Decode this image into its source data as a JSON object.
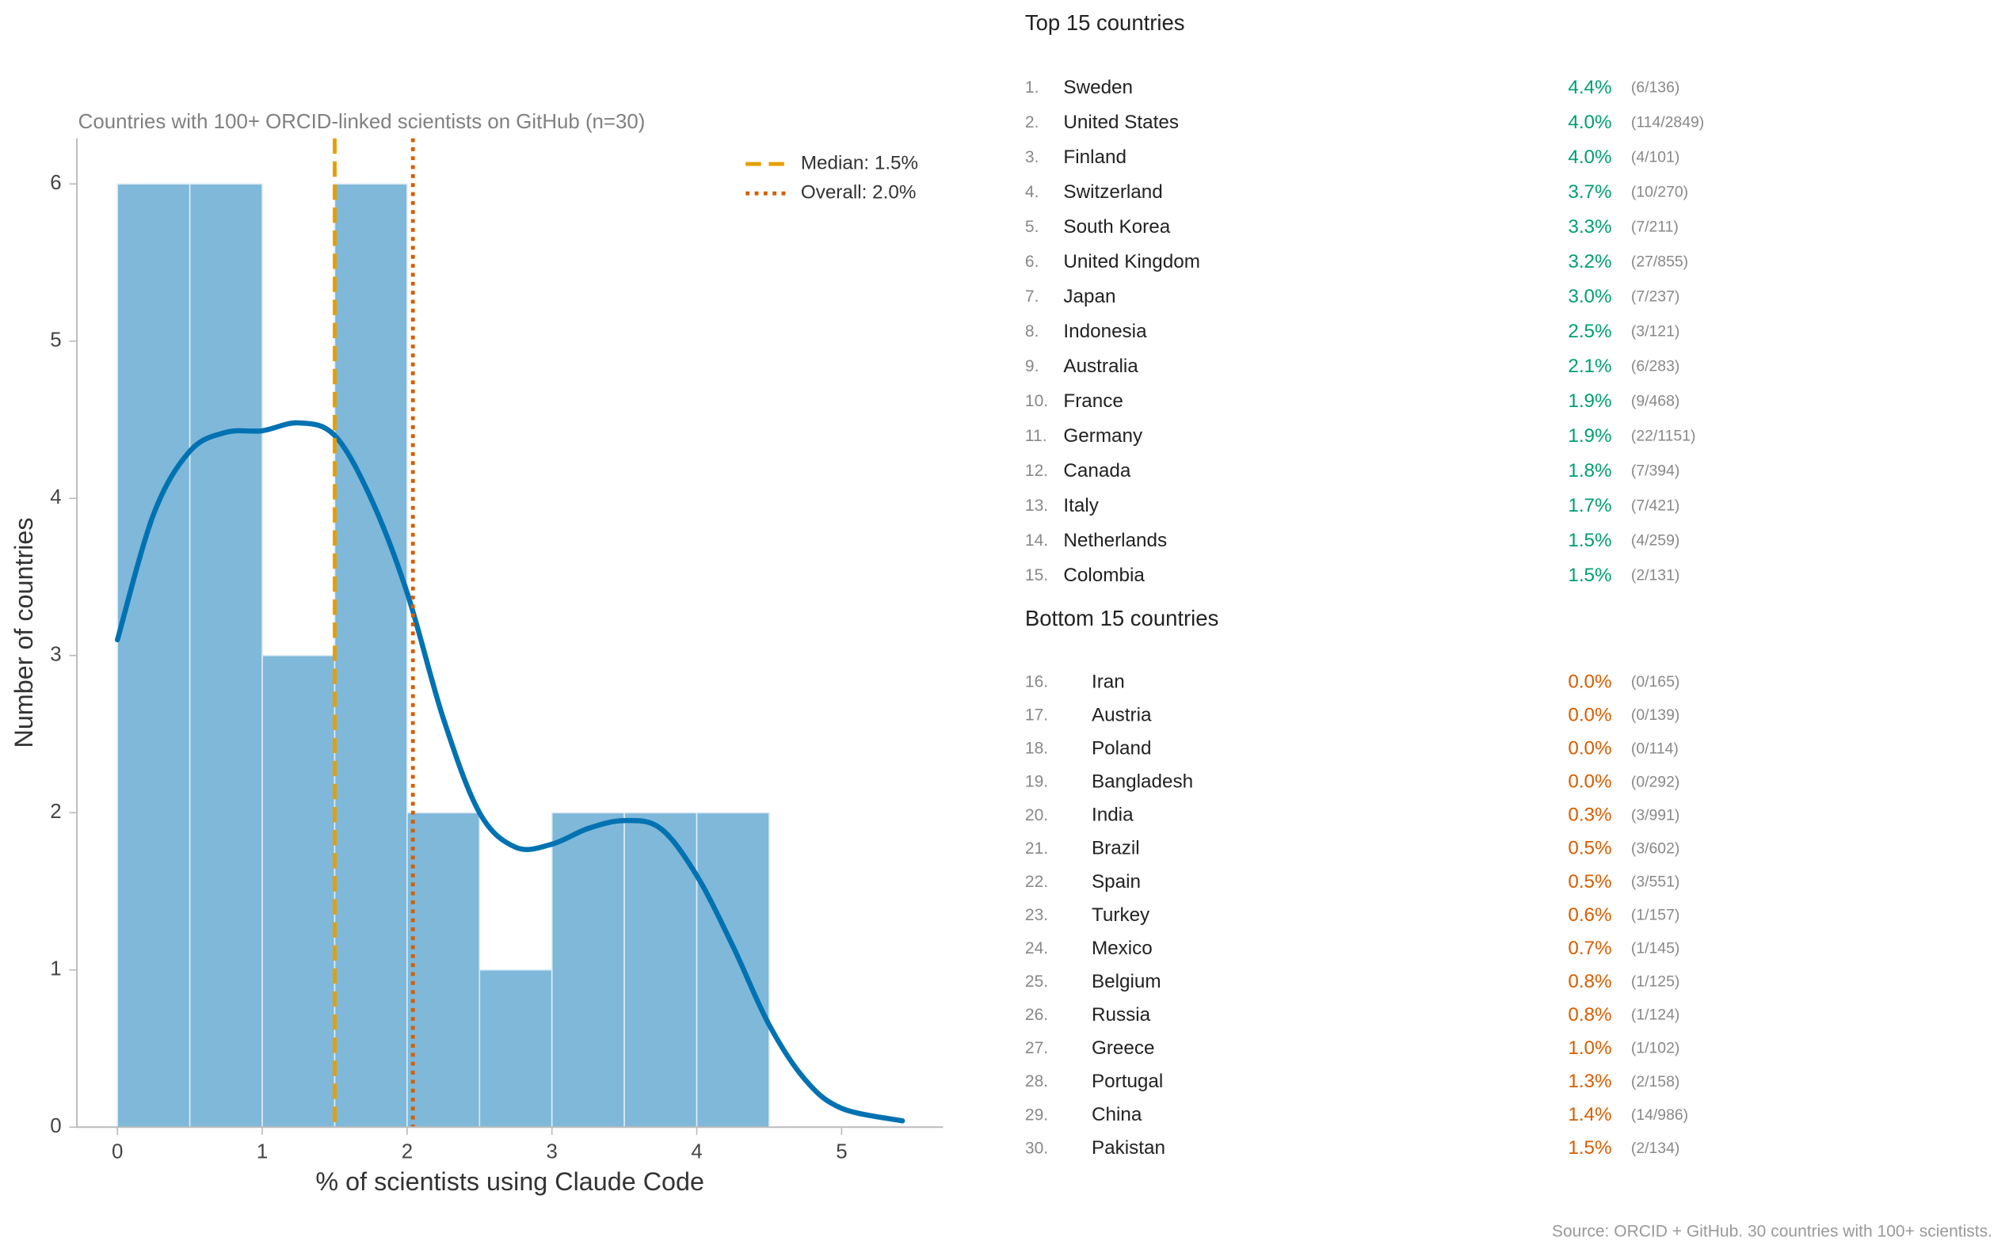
{
  "chart_data": {
    "type": "histogram",
    "title": "Countries with 100+ ORCID-linked scientists on GitHub (n=30)",
    "xlabel": "% of scientists using Claude Code",
    "ylabel": "Number of countries",
    "bins": [
      0,
      0.5,
      1,
      1.5,
      2,
      2.5,
      3,
      3.5,
      4,
      4.5
    ],
    "counts": [
      6,
      6,
      3,
      6,
      2,
      1,
      2,
      2,
      2
    ],
    "color": "#7fb8d9",
    "kde": {
      "color": "#0072b2",
      "x": [
        0,
        0.25,
        0.5,
        0.75,
        1,
        1.25,
        1.5,
        1.75,
        2,
        2.25,
        2.5,
        2.75,
        3,
        3.25,
        3.5,
        3.75,
        4,
        4.25,
        4.5,
        4.75,
        5,
        5.42
      ],
      "y": [
        3.1,
        3.9,
        4.3,
        4.42,
        4.43,
        4.48,
        4.4,
        4.0,
        3.4,
        2.6,
        2.0,
        1.78,
        1.8,
        1.9,
        1.95,
        1.9,
        1.6,
        1.15,
        0.65,
        0.3,
        0.12,
        0.04
      ]
    },
    "lines": [
      {
        "name": "Median: 1.5%",
        "value": 1.5,
        "color": "#e69f00",
        "style": "dashed"
      },
      {
        "name": "Overall: 2.0%",
        "value": 2.04,
        "color": "#d55e00",
        "style": "dotted"
      }
    ],
    "xlim": [
      -0.28,
      5.7
    ],
    "ylim": [
      0,
      6.29
    ],
    "xticks": [
      0,
      1,
      2,
      3,
      4,
      5
    ],
    "yticks": [
      0,
      1,
      2,
      3,
      4,
      5,
      6
    ],
    "legend": "upper right"
  },
  "lists": [
    {
      "title": "Top 15 countries",
      "color": "#009e73",
      "rows": [
        [
          "1.",
          "Sweden",
          "4.4%",
          "(6/136)"
        ],
        [
          "2.",
          "United States",
          "4.0%",
          "(114/2849)"
        ],
        [
          "3.",
          "Finland",
          "4.0%",
          "(4/101)"
        ],
        [
          "4.",
          "Switzerland",
          "3.7%",
          "(10/270)"
        ],
        [
          "5.",
          "South Korea",
          "3.3%",
          "(7/211)"
        ],
        [
          "6.",
          "United Kingdom",
          "3.2%",
          "(27/855)"
        ],
        [
          "7.",
          "Japan",
          "3.0%",
          "(7/237)"
        ],
        [
          "8.",
          "Indonesia",
          "2.5%",
          "(3/121)"
        ],
        [
          "9.",
          "Australia",
          "2.1%",
          "(6/283)"
        ],
        [
          "10.",
          "France",
          "1.9%",
          "(9/468)"
        ],
        [
          "11.",
          "Germany",
          "1.9%",
          "(22/1151)"
        ],
        [
          "12.",
          "Canada",
          "1.8%",
          "(7/394)"
        ],
        [
          "13.",
          "Italy",
          "1.7%",
          "(7/421)"
        ],
        [
          "14.",
          "Netherlands",
          "1.5%",
          "(4/259)"
        ],
        [
          "15.",
          "Colombia",
          "1.5%",
          "(2/131)"
        ]
      ]
    },
    {
      "title": "Bottom 15 countries",
      "color": "#d55e00",
      "rows": [
        [
          "16.",
          "Iran",
          "0.0%",
          "(0/165)"
        ],
        [
          "17.",
          "Austria",
          "0.0%",
          "(0/139)"
        ],
        [
          "18.",
          "Poland",
          "0.0%",
          "(0/114)"
        ],
        [
          "19.",
          "Bangladesh",
          "0.0%",
          "(0/292)"
        ],
        [
          "20.",
          "India",
          "0.3%",
          "(3/991)"
        ],
        [
          "21.",
          "Brazil",
          "0.5%",
          "(3/602)"
        ],
        [
          "22.",
          "Spain",
          "0.5%",
          "(3/551)"
        ],
        [
          "23.",
          "Turkey",
          "0.6%",
          "(1/157)"
        ],
        [
          "24.",
          "Mexico",
          "0.7%",
          "(1/145)"
        ],
        [
          "25.",
          "Belgium",
          "0.8%",
          "(1/125)"
        ],
        [
          "26.",
          "Russia",
          "0.8%",
          "(1/124)"
        ],
        [
          "27.",
          "Greece",
          "1.0%",
          "(1/102)"
        ],
        [
          "28.",
          "Portugal",
          "1.3%",
          "(2/158)"
        ],
        [
          "29.",
          "China",
          "1.4%",
          "(14/986)"
        ],
        [
          "30.",
          "Pakistan",
          "1.5%",
          "(2/134)"
        ]
      ]
    }
  ],
  "source": "Source: ORCID + GitHub. 30 countries with 100+ scientists."
}
